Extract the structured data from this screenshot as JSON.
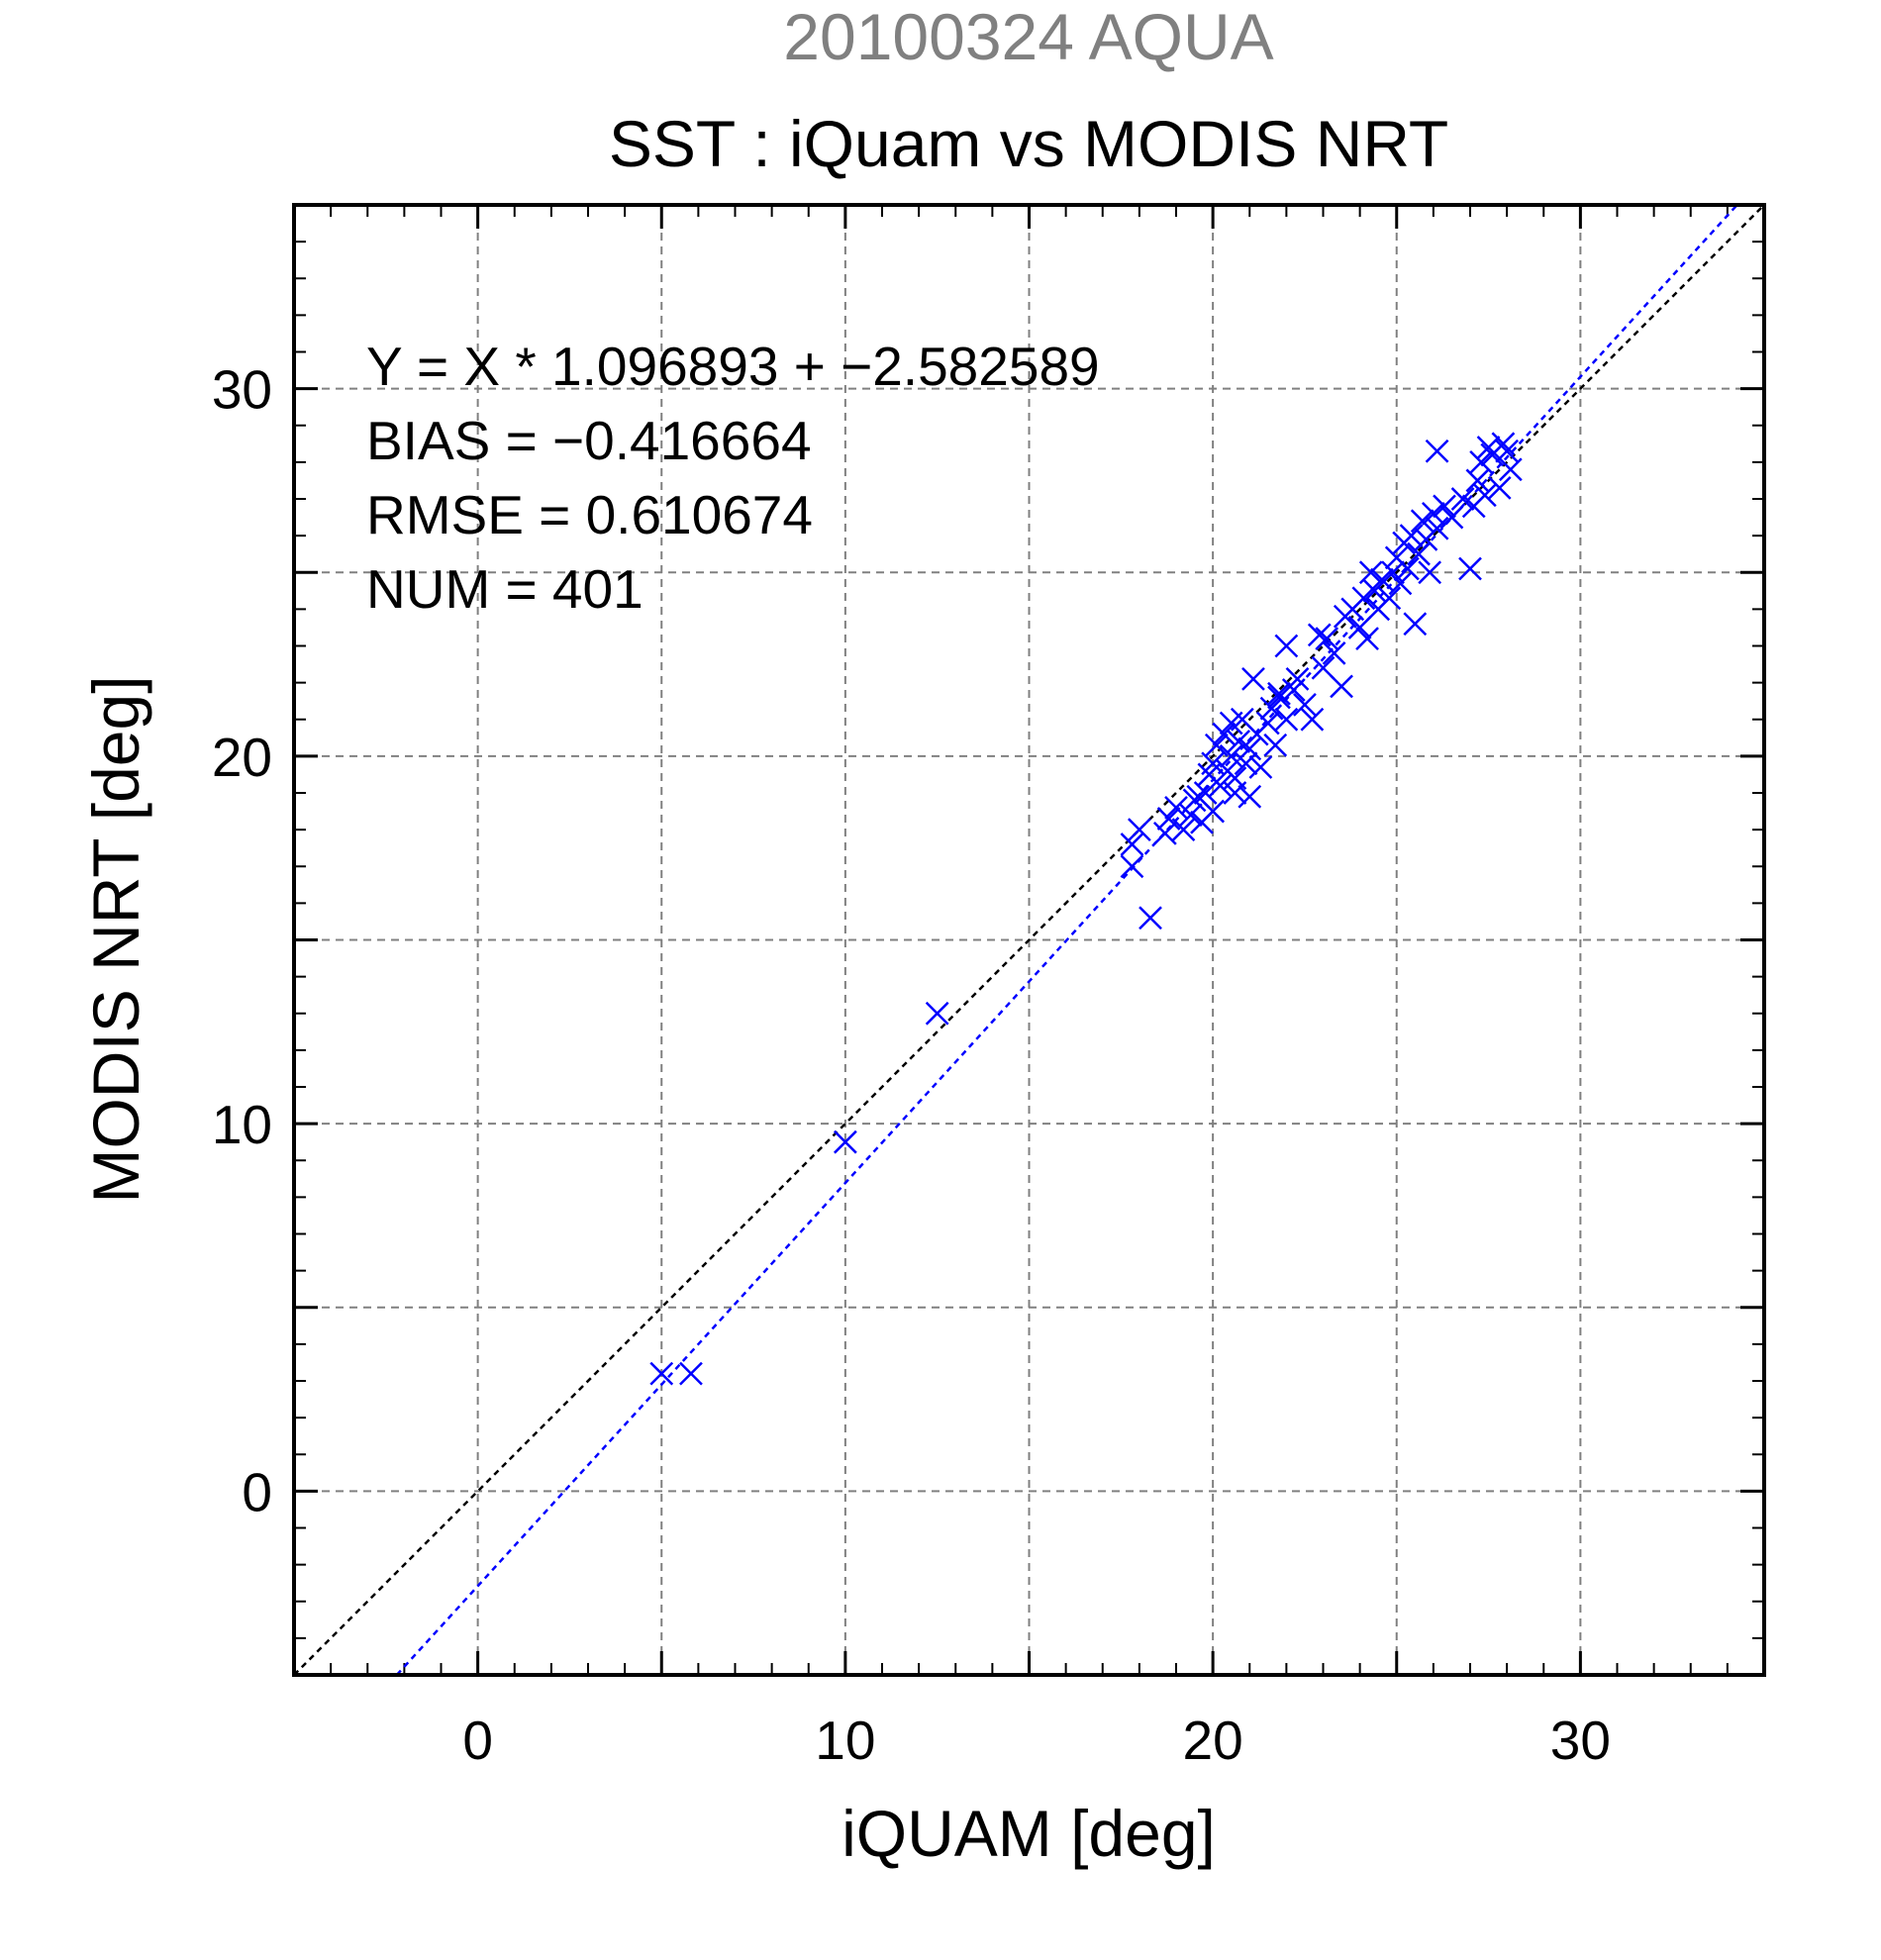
{
  "chart_data": {
    "type": "scatter",
    "date_title": "20100324 AQUA",
    "title": "SST : iQuam vs MODIS NRT",
    "xlabel": "iQUAM [deg]",
    "ylabel": "MODIS NRT [deg]",
    "xlim": [
      -5,
      35
    ],
    "ylim": [
      -5,
      35
    ],
    "xticks": [
      0,
      10,
      20,
      30
    ],
    "yticks": [
      0,
      10,
      20,
      30
    ],
    "grid": true,
    "stats": [
      "Y = X * 1.096893 + −2.582589",
      "BIAS = −0.416664",
      "RMSE = 0.610674",
      "NUM = 401"
    ],
    "lines": [
      {
        "kind": "one-to-one",
        "slope": 1,
        "intercept": 0,
        "color": "#000000"
      },
      {
        "kind": "regression",
        "slope": 1.096893,
        "intercept": -2.582589,
        "color": "#0000ff"
      }
    ],
    "marker_color": "#0000ff",
    "points": [
      [
        5.0,
        3.2
      ],
      [
        5.8,
        3.2
      ],
      [
        10.0,
        9.5
      ],
      [
        12.5,
        13.0
      ],
      [
        17.8,
        17.6
      ],
      [
        17.8,
        17.0
      ],
      [
        18.0,
        18.0
      ],
      [
        18.3,
        15.6
      ],
      [
        18.7,
        17.9
      ],
      [
        18.8,
        18.3
      ],
      [
        19.0,
        18.6
      ],
      [
        19.2,
        18.0
      ],
      [
        19.4,
        18.4
      ],
      [
        19.5,
        18.8
      ],
      [
        19.7,
        18.2
      ],
      [
        19.8,
        19.0
      ],
      [
        19.9,
        19.5
      ],
      [
        20.0,
        18.5
      ],
      [
        20.0,
        19.8
      ],
      [
        20.1,
        20.3
      ],
      [
        20.2,
        19.2
      ],
      [
        20.3,
        20.6
      ],
      [
        20.4,
        19.6
      ],
      [
        20.5,
        20.0
      ],
      [
        20.5,
        20.9
      ],
      [
        20.6,
        19.0
      ],
      [
        20.7,
        20.4
      ],
      [
        20.8,
        21.0
      ],
      [
        20.9,
        19.8
      ],
      [
        21.0,
        20.2
      ],
      [
        21.0,
        18.9
      ],
      [
        21.1,
        22.1
      ],
      [
        21.2,
        20.6
      ],
      [
        21.3,
        19.7
      ],
      [
        21.5,
        20.9
      ],
      [
        21.6,
        21.3
      ],
      [
        21.7,
        20.3
      ],
      [
        21.8,
        21.6
      ],
      [
        22.0,
        21.0
      ],
      [
        22.0,
        23.0
      ],
      [
        22.2,
        21.8
      ],
      [
        22.3,
        22.1
      ],
      [
        22.5,
        21.4
      ],
      [
        22.7,
        21.0
      ],
      [
        22.9,
        23.3
      ],
      [
        23.0,
        22.4
      ],
      [
        23.3,
        22.8
      ],
      [
        23.5,
        21.9
      ],
      [
        23.6,
        23.8
      ],
      [
        23.8,
        24.0
      ],
      [
        24.0,
        23.5
      ],
      [
        24.1,
        24.3
      ],
      [
        24.2,
        23.2
      ],
      [
        24.4,
        24.5
      ],
      [
        24.5,
        24.0
      ],
      [
        24.6,
        24.8
      ],
      [
        24.8,
        24.3
      ],
      [
        24.9,
        25.0
      ],
      [
        25.0,
        25.4
      ],
      [
        25.1,
        24.7
      ],
      [
        25.2,
        25.8
      ],
      [
        25.3,
        25.1
      ],
      [
        25.4,
        26.0
      ],
      [
        25.5,
        23.6
      ],
      [
        25.6,
        25.5
      ],
      [
        25.7,
        26.4
      ],
      [
        25.8,
        25.9
      ],
      [
        25.9,
        25.0
      ],
      [
        26.0,
        26.6
      ],
      [
        26.1,
        26.2
      ],
      [
        26.3,
        26.8
      ],
      [
        26.5,
        26.5
      ],
      [
        26.8,
        27.0
      ],
      [
        27.0,
        25.1
      ],
      [
        27.1,
        26.8
      ],
      [
        27.2,
        27.5
      ],
      [
        27.3,
        28.0
      ],
      [
        27.4,
        27.1
      ],
      [
        27.5,
        28.4
      ],
      [
        27.6,
        28.2
      ],
      [
        27.8,
        27.3
      ],
      [
        27.9,
        28.5
      ],
      [
        28.0,
        28.3
      ],
      [
        28.1,
        27.8
      ],
      [
        26.1,
        28.3
      ],
      [
        24.3,
        25.0
      ],
      [
        20.6,
        19.4
      ],
      [
        19.6,
        18.9
      ],
      [
        23.1,
        23.2
      ],
      [
        21.8,
        21.7
      ]
    ]
  }
}
